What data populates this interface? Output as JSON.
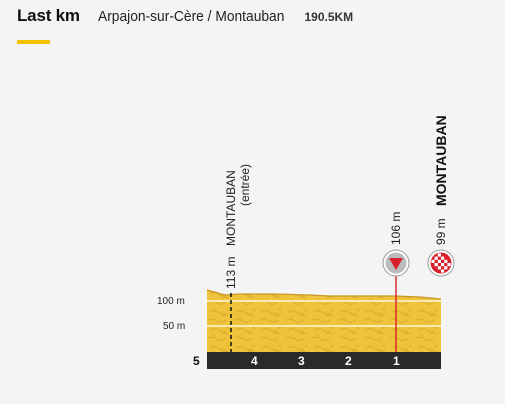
{
  "header": {
    "title": "Last km",
    "route": "Arpajon-sur-Cère / Montauban",
    "distance": "190.5KM"
  },
  "colors": {
    "accent": "#f2c200",
    "profile_fill": "#f0c43a",
    "profile_texture": "#d9a52a",
    "km_bar": "#2a2a2a",
    "marker_red": "#d8202c",
    "marker_grey": "#bcbcbc"
  },
  "y_axis": {
    "ticks": [
      {
        "label": "100 m",
        "value": 100
      },
      {
        "label": "50 m",
        "value": 50
      }
    ]
  },
  "km_markers": {
    "start": "5",
    "labels": [
      "4",
      "3",
      "2",
      "1"
    ]
  },
  "points": {
    "entry": {
      "name": "MONTAUBAN",
      "sub": "(entrée)",
      "altitude": "113 m"
    },
    "flamme_rouge": {
      "altitude": "106 m",
      "icon": "flamme-rouge-triangle-icon"
    },
    "finish": {
      "name": "MONTAUBAN",
      "altitude": "99 m",
      "icon": "checkered-flag-icon"
    }
  }
}
